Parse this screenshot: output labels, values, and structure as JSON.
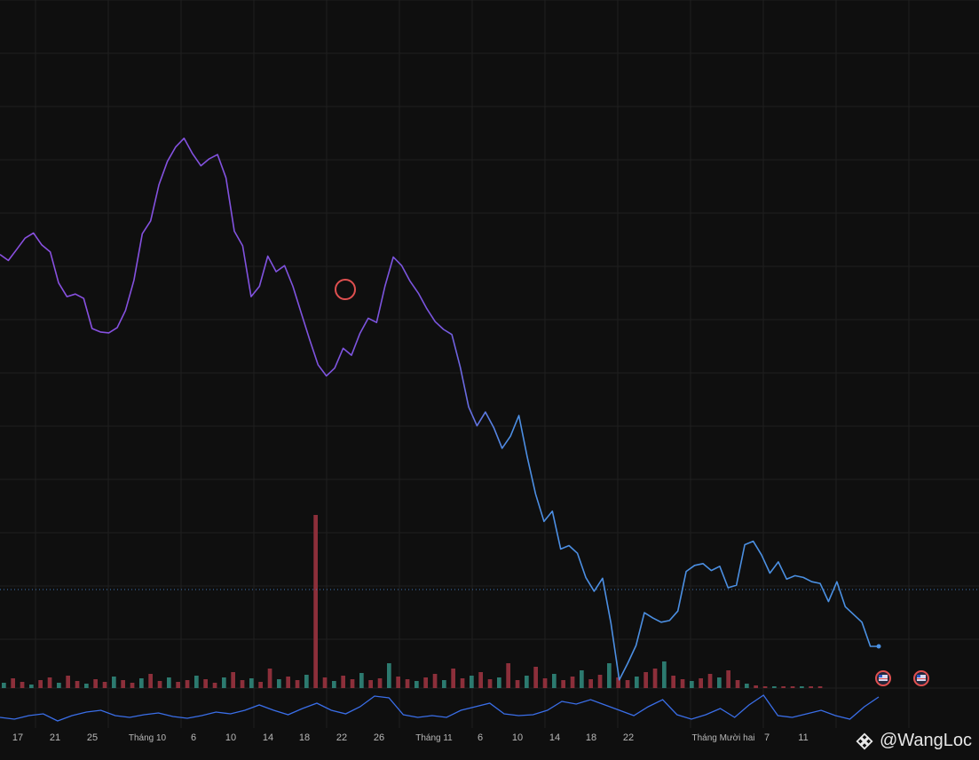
{
  "chart_data": {
    "type": "line",
    "title": "",
    "xlabel": "",
    "ylabel": "",
    "x_tick_labels": [
      "17",
      "21",
      "25",
      "Tháng 10",
      "6",
      "10",
      "14",
      "18",
      "22",
      "26",
      "Tháng 11",
      "6",
      "10",
      "14",
      "18",
      "22",
      "Tháng Mười hai",
      "7",
      "11"
    ],
    "grid": true,
    "legend": "none",
    "colors": {
      "background": "#0f0f0f",
      "grid": "#1f1f1f",
      "line_start": "#8a4fe0",
      "line_end": "#4a90e2",
      "lower_line": "#3a6ee8",
      "volume_up": "#2c7a6f",
      "volume_down": "#8c2f3a",
      "price_marker_line": "#3f76b5",
      "event_marker": "#e05050"
    },
    "series": [
      {
        "values": [
          213,
          220,
          207,
          194,
          188,
          202,
          210,
          246,
          262,
          259,
          264,
          299,
          303,
          304,
          298,
          278,
          243,
          189,
          174,
          132,
          105,
          88,
          78,
          96,
          110,
          102,
          97,
          124,
          186,
          203,
          262,
          250,
          215,
          233,
          226,
          250,
          281,
          312,
          341,
          354,
          345,
          322,
          330,
          305,
          287,
          292,
          250,
          216,
          226,
          244,
          258,
          276,
          291,
          300,
          306,
          344,
          390,
          412,
          396,
          414,
          438,
          424,
          400,
          448,
          491,
          523,
          511,
          555,
          551,
          560,
          588,
          604,
          589,
          641,
          707,
          688,
          667,
          629,
          635,
          640,
          638,
          627,
          581,
          574,
          572,
          580,
          575,
          600,
          597,
          550,
          546,
          562,
          583,
          570,
          590,
          586,
          588,
          593,
          595,
          616,
          593,
          622,
          631,
          640,
          668,
          668
        ]
      },
      {
        "name": "",
        "values": [
          808,
          810,
          806,
          804,
          812,
          806,
          802,
          800,
          806,
          808,
          805,
          803,
          807,
          809,
          806,
          802,
          804,
          800,
          794,
          800,
          805,
          798,
          792,
          800,
          804,
          796,
          784,
          786,
          805,
          808,
          806,
          808,
          800,
          796,
          792,
          804,
          806,
          805,
          800,
          790,
          793,
          788,
          794,
          800,
          806,
          796,
          788,
          805,
          810,
          805,
          798,
          808,
          794,
          783,
          806,
          808,
          804,
          800,
          806,
          810,
          796,
          785
        ]
      },
      {
        "name": "volume",
        "values": [
          6,
          11,
          7,
          4,
          9,
          12,
          6,
          14,
          8,
          5,
          10,
          7,
          13,
          9,
          6,
          11,
          16,
          8,
          12,
          7,
          9,
          14,
          10,
          6,
          12,
          18,
          9,
          11,
          7,
          22,
          10,
          13,
          9,
          15,
          195,
          12,
          8,
          14,
          10,
          17,
          9,
          11,
          28,
          13,
          10,
          8,
          12,
          16,
          9,
          22,
          11,
          14,
          18,
          10,
          12,
          28,
          9,
          14,
          24,
          11,
          16,
          9,
          13,
          20,
          10,
          15,
          28,
          12,
          9,
          13,
          18,
          22,
          30,
          14,
          10,
          8,
          11,
          16,
          12,
          20,
          9,
          5,
          3,
          2,
          2,
          2,
          2,
          2,
          2,
          2
        ]
      }
    ],
    "current_price_line": 664
  },
  "watermark": {
    "text": "@WangLoc"
  }
}
